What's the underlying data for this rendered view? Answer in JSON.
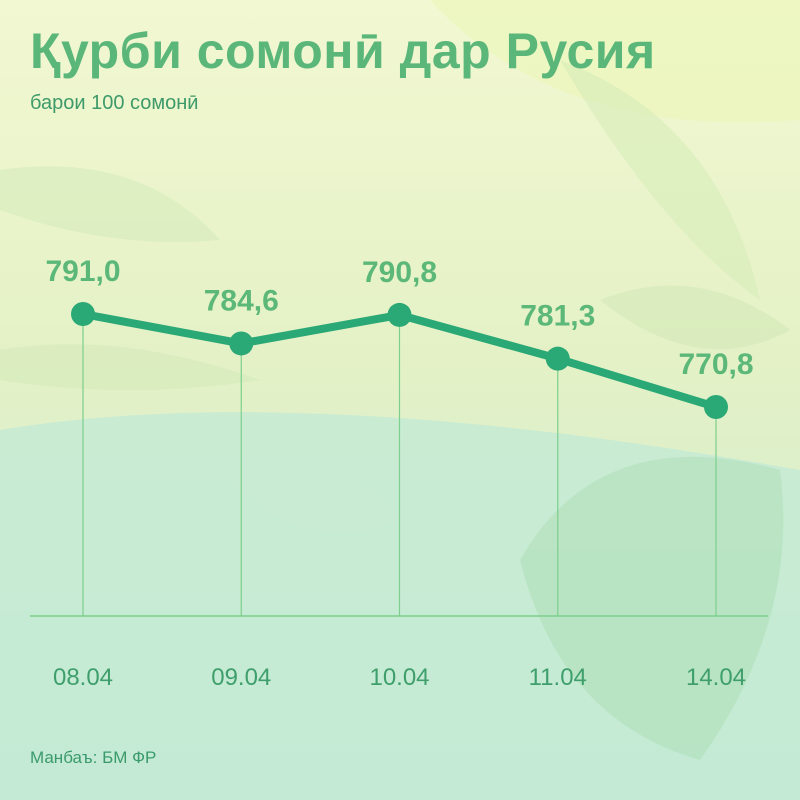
{
  "header": {
    "title": "Қурби сомонӣ дар Русия",
    "subtitle": "барои 100 сомонӣ"
  },
  "footer": {
    "source": "Манбаъ: БМ ФР"
  },
  "colors": {
    "line": "#2aa876",
    "value_label": "#5cb878",
    "tick_label": "#3f9f6c",
    "grid": "#7ccf8c"
  },
  "chart_data": {
    "type": "line",
    "title": "Қурби сомонӣ дар Русия",
    "subtitle": "барои 100 сомонӣ",
    "xlabel": "",
    "ylabel": "",
    "categories": [
      "08.04",
      "09.04",
      "10.04",
      "11.04",
      "14.04"
    ],
    "series": [
      {
        "values": [
          791.0,
          784.6,
          790.8,
          781.3,
          770.8
        ],
        "labels": [
          "791,0",
          "784,6",
          "790,8",
          "781,3",
          "770,8"
        ]
      }
    ],
    "grid": false,
    "legend": "none"
  }
}
